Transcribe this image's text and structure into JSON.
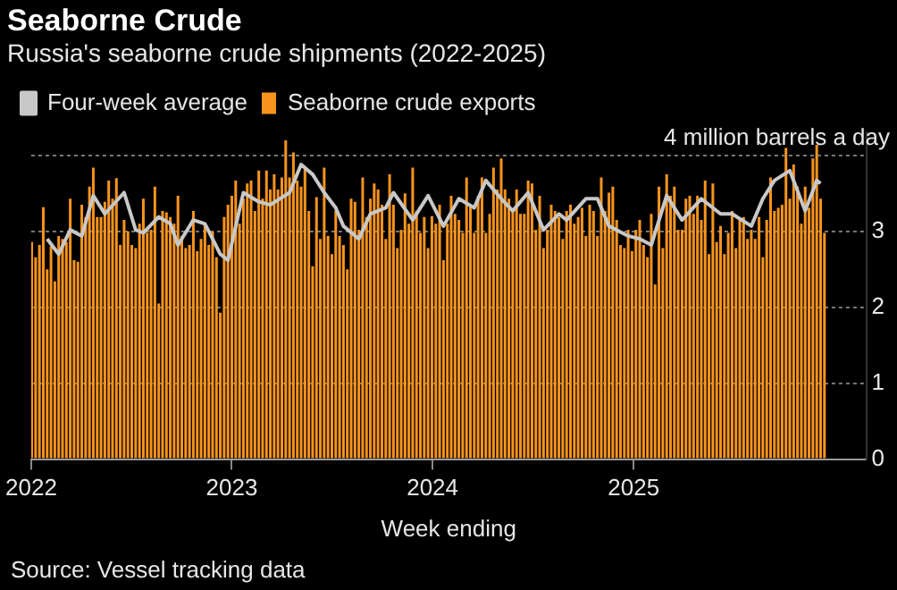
{
  "chart_data": {
    "type": "bar",
    "title": "Seaborne Crude",
    "subtitle": "Russia's seaborne crude shipments (2022-2025)",
    "xlabel": "Week ending",
    "x": [
      "2022-01-02",
      "2022-01-09",
      "2022-01-16",
      "2022-01-23",
      "2022-01-30",
      "2022-02-06",
      "2022-02-13",
      "2022-02-20",
      "2022-02-27",
      "2022-03-06",
      "2022-03-13",
      "2022-03-20",
      "2022-03-27",
      "2022-04-03",
      "2022-04-10",
      "2022-04-17",
      "2022-04-24",
      "2022-05-01",
      "2022-05-08",
      "2022-05-15",
      "2022-05-22",
      "2022-05-29",
      "2022-06-05",
      "2022-06-12",
      "2022-06-19",
      "2022-06-26",
      "2022-07-03",
      "2022-07-10",
      "2022-07-17",
      "2022-07-24",
      "2022-07-31",
      "2022-08-07",
      "2022-08-14",
      "2022-08-21",
      "2022-08-28",
      "2022-09-04",
      "2022-09-11",
      "2022-09-18",
      "2022-09-25",
      "2022-10-02",
      "2022-10-09",
      "2022-10-16",
      "2022-10-23",
      "2022-10-30",
      "2022-11-06",
      "2022-11-13",
      "2022-11-20",
      "2022-11-27",
      "2022-12-04",
      "2022-12-11",
      "2022-12-18",
      "2022-12-25",
      "2023-01-01",
      "2023-01-08",
      "2023-01-15",
      "2023-01-22",
      "2023-01-29",
      "2023-02-05",
      "2023-02-12",
      "2023-02-19",
      "2023-02-26",
      "2023-03-05",
      "2023-03-12",
      "2023-03-19",
      "2023-03-26",
      "2023-04-02",
      "2023-04-09",
      "2023-04-16",
      "2023-04-23",
      "2023-04-30",
      "2023-05-07",
      "2023-05-14",
      "2023-05-21",
      "2023-05-28",
      "2023-06-04",
      "2023-06-11",
      "2023-06-18",
      "2023-06-25",
      "2023-07-02",
      "2023-07-09",
      "2023-07-16",
      "2023-07-23",
      "2023-07-30",
      "2023-08-06",
      "2023-08-13",
      "2023-08-20",
      "2023-08-27",
      "2023-09-03",
      "2023-09-10",
      "2023-09-17",
      "2023-09-24",
      "2023-10-01",
      "2023-10-08",
      "2023-10-15",
      "2023-10-22",
      "2023-10-29",
      "2023-11-05",
      "2023-11-12",
      "2023-11-19",
      "2023-11-26",
      "2023-12-03",
      "2023-12-10",
      "2023-12-17",
      "2023-12-24",
      "2023-12-31",
      "2024-01-07",
      "2024-01-14",
      "2024-01-21",
      "2024-01-28",
      "2024-02-04",
      "2024-02-11",
      "2024-02-18",
      "2024-02-25",
      "2024-03-03",
      "2024-03-10",
      "2024-03-17",
      "2024-03-24",
      "2024-03-31",
      "2024-04-07",
      "2024-04-14",
      "2024-04-21",
      "2024-04-28",
      "2024-05-05",
      "2024-05-12",
      "2024-05-19",
      "2024-05-26",
      "2024-06-02",
      "2024-06-09",
      "2024-06-16",
      "2024-06-23",
      "2024-06-30",
      "2024-07-07",
      "2024-07-14",
      "2024-07-21",
      "2024-07-28",
      "2024-08-04",
      "2024-08-11",
      "2024-08-18",
      "2024-08-25",
      "2024-09-01",
      "2024-09-08",
      "2024-09-15",
      "2024-09-22",
      "2024-09-29",
      "2024-10-06",
      "2024-10-13",
      "2024-10-20",
      "2024-10-27",
      "2024-11-03",
      "2024-11-10",
      "2024-11-17",
      "2024-11-24",
      "2024-12-01",
      "2024-12-08",
      "2024-12-15",
      "2024-12-22",
      "2024-12-29",
      "2025-01-05",
      "2025-01-12",
      "2025-01-19",
      "2025-01-26",
      "2025-02-02",
      "2025-02-09",
      "2025-02-16",
      "2025-02-23",
      "2025-03-02",
      "2025-03-09",
      "2025-03-16",
      "2025-03-23",
      "2025-03-30",
      "2025-04-06",
      "2025-04-13",
      "2025-04-20",
      "2025-04-27",
      "2025-05-04",
      "2025-05-11",
      "2025-05-18",
      "2025-05-25",
      "2025-06-01",
      "2025-06-08",
      "2025-06-15",
      "2025-06-22",
      "2025-06-29",
      "2025-07-06",
      "2025-07-13",
      "2025-07-20",
      "2025-07-27",
      "2025-08-03",
      "2025-08-10",
      "2025-08-17",
      "2025-08-24",
      "2025-08-31",
      "2025-09-07",
      "2025-09-14",
      "2025-09-21",
      "2025-09-28",
      "2025-10-05",
      "2025-10-12",
      "2025-10-19",
      "2025-10-26",
      "2025-11-02",
      "2025-11-09",
      "2025-11-16",
      "2025-11-23",
      "2025-11-30",
      "2025-12-07",
      "2025-12-14"
    ],
    "series": [
      {
        "name": "Seaborne crude exports",
        "color": "#f7941d",
        "values": [
          2.86,
          2.66,
          2.82,
          3.32,
          2.5,
          2.8,
          2.34,
          2.94,
          2.9,
          2.86,
          3.43,
          2.62,
          2.6,
          3.35,
          3.19,
          3.59,
          3.84,
          3.19,
          3.19,
          3.39,
          3.67,
          3.43,
          3.7,
          2.82,
          3.15,
          3.0,
          2.82,
          2.78,
          3.1,
          3.43,
          2.98,
          3.02,
          3.59,
          2.05,
          3.27,
          3.25,
          3.19,
          3.1,
          3.47,
          2.94,
          2.78,
          2.82,
          3.27,
          2.74,
          2.9,
          3.1,
          2.82,
          3.0,
          2.66,
          1.93,
          3.19,
          3.35,
          3.47,
          3.67,
          3.1,
          3.43,
          3.63,
          3.67,
          3.27,
          3.8,
          3.43,
          3.8,
          3.55,
          3.75,
          3.55,
          3.71,
          4.2,
          3.71,
          4.04,
          3.67,
          3.59,
          3.84,
          3.27,
          2.54,
          3.45,
          2.9,
          3.84,
          2.94,
          2.7,
          3.27,
          2.94,
          2.82,
          2.5,
          3.43,
          3.39,
          3.02,
          3.71,
          3.19,
          3.43,
          3.63,
          3.55,
          3.35,
          2.9,
          3.75,
          3.35,
          2.78,
          3.02,
          3.5,
          3.1,
          3.84,
          3.27,
          2.98,
          3.19,
          2.78,
          3.2,
          3.1,
          3.35,
          2.62,
          3.1,
          3.47,
          3.23,
          3.15,
          2.98,
          3.71,
          3.35,
          2.98,
          3.47,
          3.71,
          2.98,
          3.23,
          3.84,
          3.55,
          3.96,
          3.55,
          3.43,
          3.27,
          3.55,
          3.23,
          3.23,
          3.67,
          3.63,
          3.02,
          3.47,
          2.78,
          3.02,
          3.35,
          3.27,
          3.19,
          2.9,
          3.27,
          3.35,
          3.1,
          3.19,
          3.31,
          2.94,
          3.35,
          3.27,
          2.94,
          3.71,
          3.27,
          3.51,
          3.59,
          3.15,
          2.82,
          2.78,
          3.02,
          2.74,
          3.02,
          3.15,
          2.82,
          2.66,
          3.23,
          2.3,
          3.59,
          2.78,
          3.75,
          3.47,
          3.59,
          3.02,
          3.02,
          3.43,
          3.47,
          3.23,
          3.47,
          3.15,
          3.67,
          2.7,
          3.63,
          2.86,
          3.07,
          2.7,
          2.98,
          3.27,
          2.78,
          3.15,
          3.19,
          2.9,
          3.02,
          2.9,
          3.19,
          2.66,
          3.15,
          3.71,
          3.27,
          3.31,
          3.35,
          4.1,
          3.43,
          3.88,
          3.59,
          3.1,
          3.59,
          3.31,
          3.96,
          4.14,
          3.43,
          2.98
        ]
      },
      {
        "name": "Four-week average",
        "type": "line",
        "color": "#c8c8c8",
        "x": [
          "2022-01-30",
          "2022-02-20",
          "2022-03-13",
          "2022-04-03",
          "2022-04-24",
          "2022-05-15",
          "2022-06-19",
          "2022-07-10",
          "2022-07-24",
          "2022-08-21",
          "2022-09-11",
          "2022-09-25",
          "2022-10-23",
          "2022-11-13",
          "2022-12-11",
          "2022-12-25",
          "2023-01-22",
          "2023-02-19",
          "2023-03-12",
          "2023-04-16",
          "2023-05-07",
          "2023-05-28",
          "2023-06-18",
          "2023-07-09",
          "2023-07-23",
          "2023-08-20",
          "2023-09-10",
          "2023-10-08",
          "2023-10-22",
          "2023-11-26",
          "2023-12-24",
          "2024-01-21",
          "2024-02-18",
          "2024-03-17",
          "2024-04-07",
          "2024-05-05",
          "2024-05-26",
          "2024-06-23",
          "2024-07-21",
          "2024-08-18",
          "2024-09-01",
          "2024-10-06",
          "2024-10-27",
          "2024-11-17",
          "2024-12-22",
          "2025-01-12",
          "2025-02-02",
          "2025-03-02",
          "2025-03-30",
          "2025-05-04",
          "2025-06-08",
          "2025-06-29",
          "2025-08-03",
          "2025-08-24",
          "2025-09-14",
          "2025-10-12",
          "2025-11-09",
          "2025-11-30",
          "2025-12-07"
        ],
        "values": [
          2.9,
          2.7,
          3.02,
          2.94,
          3.47,
          3.23,
          3.51,
          3.02,
          2.98,
          3.19,
          3.1,
          2.82,
          3.15,
          3.1,
          2.7,
          2.62,
          3.51,
          3.39,
          3.35,
          3.51,
          3.88,
          3.75,
          3.51,
          3.31,
          3.07,
          2.9,
          3.23,
          3.31,
          3.51,
          3.15,
          3.47,
          3.07,
          3.43,
          3.31,
          3.67,
          3.43,
          3.27,
          3.51,
          3.02,
          3.23,
          3.15,
          3.43,
          3.43,
          3.07,
          2.94,
          2.9,
          2.82,
          3.47,
          3.15,
          3.43,
          3.23,
          3.23,
          3.07,
          3.43,
          3.67,
          3.8,
          3.27,
          3.67,
          3.63
        ]
      }
    ],
    "xlim": [
      "2022-01-01",
      "2026-02-28"
    ],
    "xticks": [
      {
        "value": "2022-01-01",
        "label": "2022"
      },
      {
        "value": "2023-01-01",
        "label": "2023"
      },
      {
        "value": "2024-01-01",
        "label": "2024"
      },
      {
        "value": "2025-01-01",
        "label": "2025"
      }
    ],
    "ylim": [
      0,
      4.3
    ],
    "yticks": [
      0,
      1,
      2,
      3
    ],
    "ref_lines": [
      {
        "axis": "y",
        "value": 4,
        "label": "4 million barrels a day",
        "line_style": "dotted",
        "color": "#777777"
      }
    ],
    "grid": "y",
    "legend": "top left",
    "annotations": [
      "Source: Vessel tracking data"
    ]
  }
}
